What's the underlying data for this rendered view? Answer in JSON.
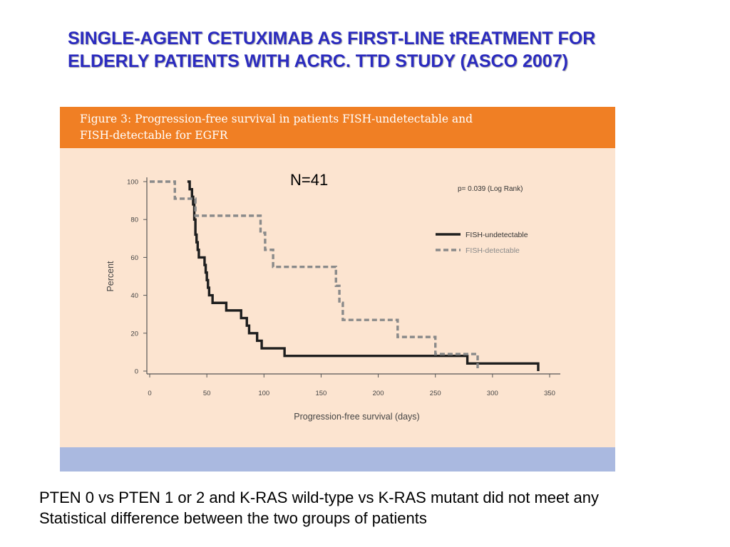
{
  "slide": {
    "title_line1": "SINGLE-AGENT CETUXIMAB AS FIRST-LINE tREATMENT FOR",
    "title_line2": "ELDERLY PATIENTS WITH ACRC. TTD STUDY (ASCO 2007)",
    "n_label": "N=41",
    "footer_line1": "PTEN 0 vs PTEN 1 or 2 and K-RAS wild-type vs K-RAS mutant did not meet any",
    "footer_line2": "Statistical difference between the two groups of patients"
  },
  "figure": {
    "caption_line1": "Figure 3: Progression-free survival in patients FISH-undetectable and",
    "caption_line2": "FISH-detectable for EGFR",
    "colors": {
      "header": "#f07f24",
      "panel": "#fce4d0",
      "footer": "#aab9e0",
      "title": "#2b2bbf"
    }
  },
  "chart_data": {
    "type": "line",
    "step": true,
    "title": "",
    "xlabel": "Progression-free survival (days)",
    "ylabel": "Percent",
    "xlim": [
      0,
      350
    ],
    "ylim": [
      0,
      100
    ],
    "xticks": [
      0,
      50,
      100,
      150,
      200,
      250,
      300,
      350
    ],
    "yticks": [
      0,
      20,
      40,
      60,
      80,
      100
    ],
    "annotation": "p= 0.039 (Log Rank)",
    "legend_position": "right",
    "series": [
      {
        "name": "FISH-undetectable",
        "color": "#1e1e1e",
        "dashed": false,
        "points": [
          [
            33,
            100
          ],
          [
            35,
            96
          ],
          [
            37,
            92
          ],
          [
            38,
            88
          ],
          [
            39,
            80
          ],
          [
            40,
            72
          ],
          [
            41,
            68
          ],
          [
            42,
            64
          ],
          [
            43,
            60
          ],
          [
            48,
            56
          ],
          [
            49,
            52
          ],
          [
            50,
            48
          ],
          [
            51,
            44
          ],
          [
            52,
            40
          ],
          [
            55,
            36
          ],
          [
            67,
            32
          ],
          [
            80,
            28
          ],
          [
            85,
            24
          ],
          [
            87,
            20
          ],
          [
            94,
            16
          ],
          [
            98,
            12
          ],
          [
            118,
            8
          ],
          [
            278,
            4
          ],
          [
            340,
            0
          ]
        ]
      },
      {
        "name": "FISH-detectable",
        "color": "#8a8a8a",
        "dashed": true,
        "points": [
          [
            0,
            100
          ],
          [
            22,
            91
          ],
          [
            40,
            82
          ],
          [
            97,
            73
          ],
          [
            101,
            64
          ],
          [
            108,
            55
          ],
          [
            163,
            45
          ],
          [
            166,
            36
          ],
          [
            169,
            27
          ],
          [
            217,
            18
          ],
          [
            250,
            9
          ],
          [
            287,
            0
          ]
        ]
      }
    ]
  }
}
